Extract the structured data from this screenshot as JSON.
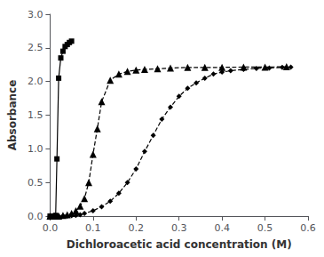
{
  "chart_data": {
    "type": "line",
    "xlabel": "Dichloroacetic acid concentration (M)",
    "ylabel": "Absorbance",
    "xlim": [
      0,
      0.6
    ],
    "ylim": [
      0,
      3
    ],
    "xticks": [
      {
        "value": 0,
        "label": "0.0"
      },
      0.1,
      0.2,
      0.3,
      0.4,
      0.5,
      0.6
    ],
    "yticks": [
      {
        "value": 0,
        "label": "0.0"
      },
      0.5,
      {
        "value": 1.0,
        "label": "1.0"
      },
      1.5,
      {
        "value": 2.0,
        "label": "2.0"
      },
      2.5,
      {
        "value": 3.0,
        "label": "3.0"
      }
    ],
    "grid": false,
    "series": [
      {
        "color": "#000000",
        "marker": "square",
        "line_style": "solid",
        "x": [
          0.0,
          0.005,
          0.01,
          0.013,
          0.016,
          0.02,
          0.025,
          0.03,
          0.035,
          0.04,
          0.045,
          0.05
        ],
        "values": [
          0.0,
          0.0,
          0.0,
          0.01,
          0.85,
          2.05,
          2.35,
          2.45,
          2.52,
          2.55,
          2.58,
          2.6
        ]
      },
      {
        "color": "#000000",
        "marker": "triangle",
        "line_style": "dashed",
        "x": [
          0.0,
          0.01,
          0.02,
          0.03,
          0.04,
          0.05,
          0.06,
          0.07,
          0.08,
          0.09,
          0.1,
          0.11,
          0.12,
          0.14,
          0.16,
          0.18,
          0.2,
          0.22,
          0.25,
          0.28,
          0.32,
          0.36,
          0.4,
          0.45,
          0.5,
          0.55
        ],
        "values": [
          0.0,
          0.0,
          0.0,
          0.01,
          0.02,
          0.04,
          0.08,
          0.15,
          0.26,
          0.5,
          0.92,
          1.3,
          1.7,
          2.02,
          2.11,
          2.15,
          2.17,
          2.18,
          2.19,
          2.2,
          2.21,
          2.21,
          2.21,
          2.215,
          2.215,
          2.22
        ]
      },
      {
        "color": "#000000",
        "marker": "diamond",
        "line_style": "dashed",
        "x": [
          0.0,
          0.01,
          0.02,
          0.03,
          0.04,
          0.05,
          0.06,
          0.07,
          0.08,
          0.1,
          0.12,
          0.14,
          0.16,
          0.18,
          0.2,
          0.22,
          0.24,
          0.26,
          0.28,
          0.3,
          0.32,
          0.34,
          0.36,
          0.38,
          0.4,
          0.42,
          0.45,
          0.48,
          0.51,
          0.54,
          0.56
        ],
        "values": [
          0.0,
          0.0,
          0.0,
          0.0,
          0.0,
          0.005,
          0.01,
          0.02,
          0.04,
          0.08,
          0.14,
          0.22,
          0.34,
          0.5,
          0.7,
          0.96,
          1.2,
          1.44,
          1.62,
          1.78,
          1.9,
          1.98,
          2.05,
          2.11,
          2.14,
          2.16,
          2.18,
          2.195,
          2.2,
          2.21,
          2.215
        ]
      }
    ]
  }
}
